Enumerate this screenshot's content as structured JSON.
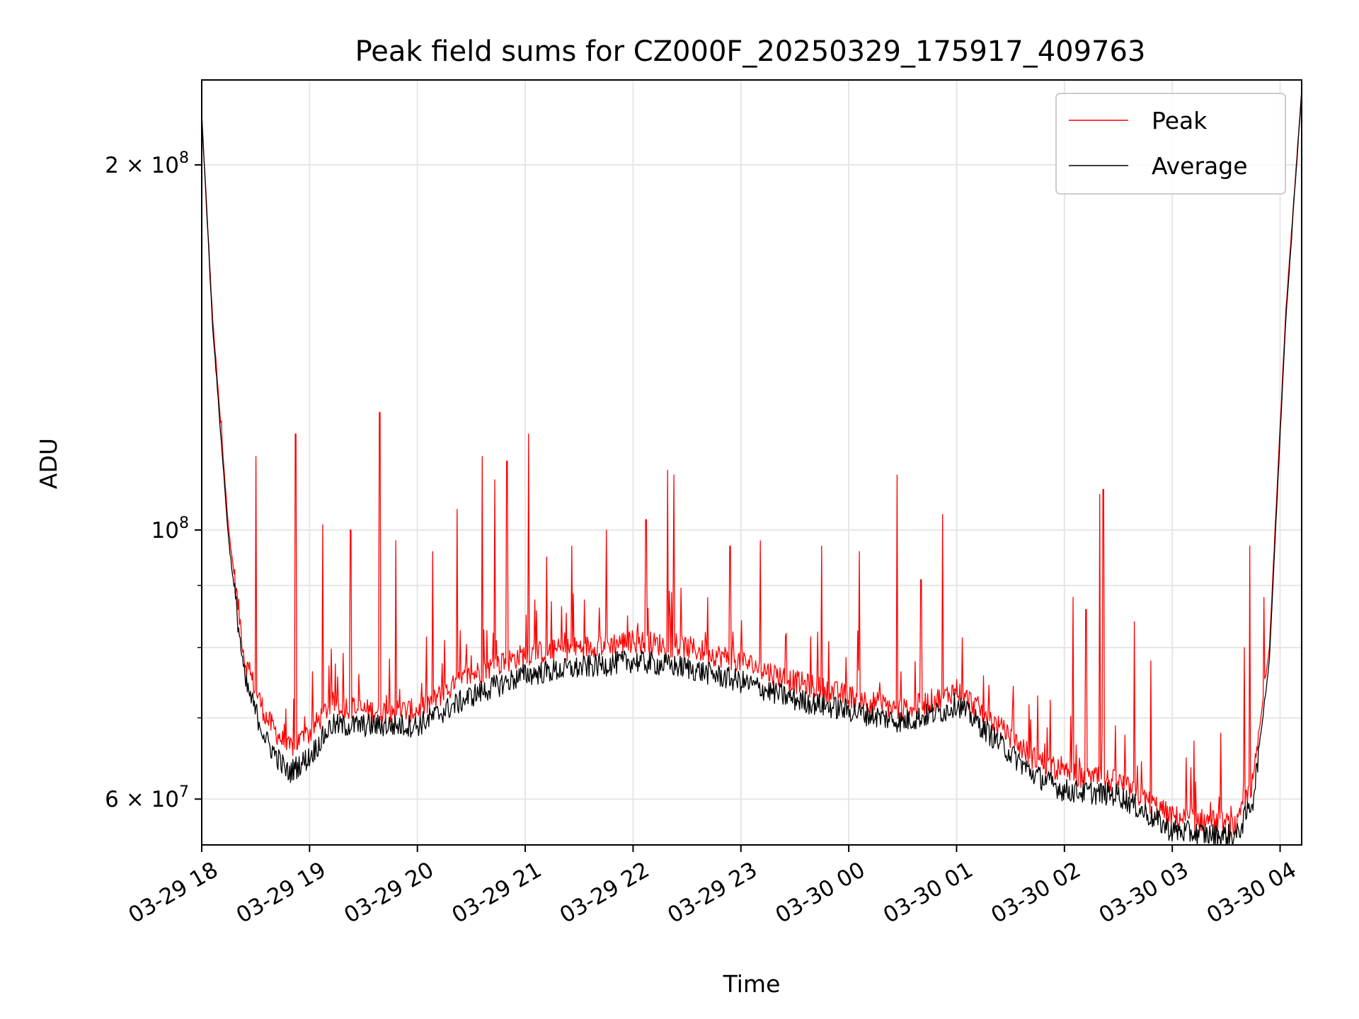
{
  "chart_data": {
    "type": "line",
    "title": "Peak field sums for CZ000F_20250329_175917_409763",
    "xlabel": "Time",
    "ylabel": "ADU",
    "y_scale": "log",
    "grid": true,
    "legend_position": "top-right",
    "x_ticks": [
      "03-29 18",
      "03-29 19",
      "03-29 20",
      "03-29 21",
      "03-29 22",
      "03-29 23",
      "03-30 00",
      "03-30 01",
      "03-30 02",
      "03-30 03",
      "03-30 04"
    ],
    "y_tick_labels": [
      {
        "value": 200000000,
        "base": "2 × 10",
        "exp": "8"
      },
      {
        "value": 100000000,
        "base": "10",
        "exp": "8"
      },
      {
        "value": 60000000,
        "base": "6 × 10",
        "exp": "7"
      }
    ],
    "y_minor_ticks": [
      70000000,
      80000000,
      90000000
    ],
    "x_range_hours": [
      0.0,
      10.2
    ],
    "ylim": [
      55000000,
      235000000
    ],
    "x_hours_since_03_29_18_00": [
      0.0,
      0.1,
      0.25,
      0.4,
      0.6,
      0.8,
      1.0,
      1.2,
      1.5,
      2.0,
      2.5,
      3.0,
      3.5,
      4.0,
      4.5,
      5.0,
      5.5,
      6.0,
      6.5,
      6.9,
      7.0,
      7.3,
      7.7,
      8.0,
      8.5,
      9.0,
      9.4,
      9.6,
      9.75,
      9.9,
      10.05,
      10.2
    ],
    "series": [
      {
        "name": "Peak",
        "color": "#ff0000",
        "values": [
          220000000,
          150000000,
          100000000,
          78000000,
          70000000,
          66000000,
          68000000,
          72000000,
          71000000,
          71000000,
          76000000,
          79000000,
          80000000,
          81000000,
          80000000,
          78000000,
          75000000,
          73000000,
          71000000,
          73000000,
          74000000,
          70000000,
          65000000,
          63000000,
          62000000,
          58000000,
          57500000,
          57000000,
          62000000,
          80000000,
          150000000,
          230000000
        ],
        "spikes": [
          {
            "x": 0.18,
            "y": 123000000
          },
          {
            "x": 0.5,
            "y": 115000000
          },
          {
            "x": 0.87,
            "y": 120000000
          },
          {
            "x": 1.12,
            "y": 101000000
          },
          {
            "x": 1.38,
            "y": 100000000
          },
          {
            "x": 1.65,
            "y": 125000000
          },
          {
            "x": 1.8,
            "y": 98000000
          },
          {
            "x": 2.14,
            "y": 96000000
          },
          {
            "x": 2.37,
            "y": 104000000
          },
          {
            "x": 2.6,
            "y": 115000000
          },
          {
            "x": 2.72,
            "y": 110000000
          },
          {
            "x": 2.83,
            "y": 114000000
          },
          {
            "x": 3.03,
            "y": 120000000
          },
          {
            "x": 3.2,
            "y": 95000000
          },
          {
            "x": 3.43,
            "y": 97000000
          },
          {
            "x": 3.75,
            "y": 100000000
          },
          {
            "x": 4.12,
            "y": 102000000
          },
          {
            "x": 4.32,
            "y": 112000000
          },
          {
            "x": 4.38,
            "y": 111000000
          },
          {
            "x": 4.9,
            "y": 97000000
          },
          {
            "x": 5.18,
            "y": 98000000
          },
          {
            "x": 5.75,
            "y": 97000000
          },
          {
            "x": 6.1,
            "y": 96000000
          },
          {
            "x": 6.45,
            "y": 111000000
          },
          {
            "x": 6.67,
            "y": 91000000
          },
          {
            "x": 6.87,
            "y": 103000000
          },
          {
            "x": 7.75,
            "y": 73000000
          },
          {
            "x": 8.08,
            "y": 88000000
          },
          {
            "x": 8.2,
            "y": 86000000
          },
          {
            "x": 8.33,
            "y": 107000000
          },
          {
            "x": 8.36,
            "y": 108000000
          },
          {
            "x": 8.65,
            "y": 84000000
          },
          {
            "x": 8.8,
            "y": 78000000
          },
          {
            "x": 9.2,
            "y": 67000000
          },
          {
            "x": 9.45,
            "y": 68000000
          },
          {
            "x": 9.67,
            "y": 80000000
          },
          {
            "x": 9.72,
            "y": 97000000
          },
          {
            "x": 9.85,
            "y": 88000000
          },
          {
            "x": 9.95,
            "y": 100000000
          }
        ]
      },
      {
        "name": "Average",
        "color": "#000000",
        "values": [
          220000000,
          148000000,
          98000000,
          75000000,
          67000000,
          63000000,
          65000000,
          69000000,
          69000000,
          69000000,
          73000000,
          76000000,
          77000000,
          78000000,
          77000000,
          75000000,
          72500000,
          71000000,
          69500000,
          71000000,
          72000000,
          68000000,
          63000000,
          61000000,
          60500000,
          56500000,
          56000000,
          56000000,
          60000000,
          78000000,
          148000000,
          230000000
        ]
      }
    ]
  },
  "legend": {
    "items": [
      {
        "label": "Peak",
        "color": "#ff0000"
      },
      {
        "label": "Average",
        "color": "#000000"
      }
    ]
  }
}
